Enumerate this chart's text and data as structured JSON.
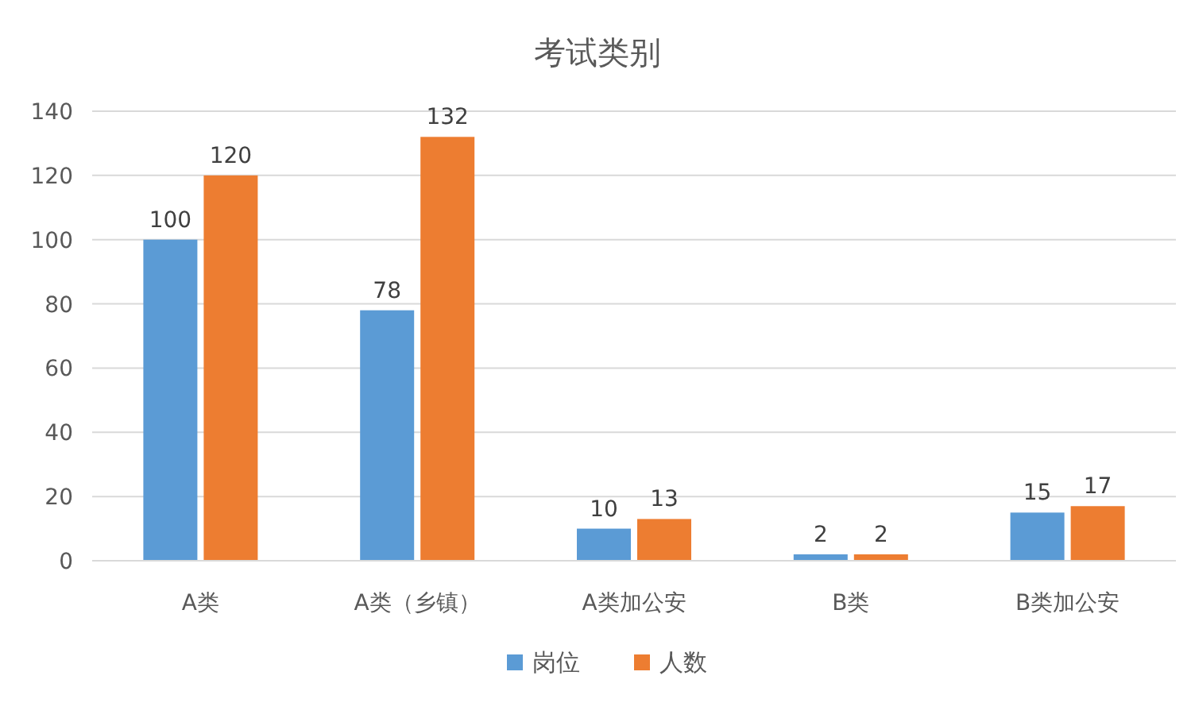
{
  "chart_data": {
    "type": "bar",
    "title": "考试类别",
    "categories": [
      "A类",
      "A类（乡镇）",
      "A类加公安",
      "B类",
      "B类加公安"
    ],
    "series": [
      {
        "name": "岗位",
        "color": "#5b9bd5",
        "values": [
          100,
          78,
          10,
          2,
          15
        ]
      },
      {
        "name": "人数",
        "color": "#ed7d31",
        "values": [
          120,
          132,
          13,
          2,
          17
        ]
      }
    ],
    "ylim": [
      0,
      140
    ],
    "yticks": [
      0,
      20,
      40,
      60,
      80,
      100,
      120,
      140
    ],
    "grid": "y",
    "legend": "bottom",
    "data_labels": true
  }
}
